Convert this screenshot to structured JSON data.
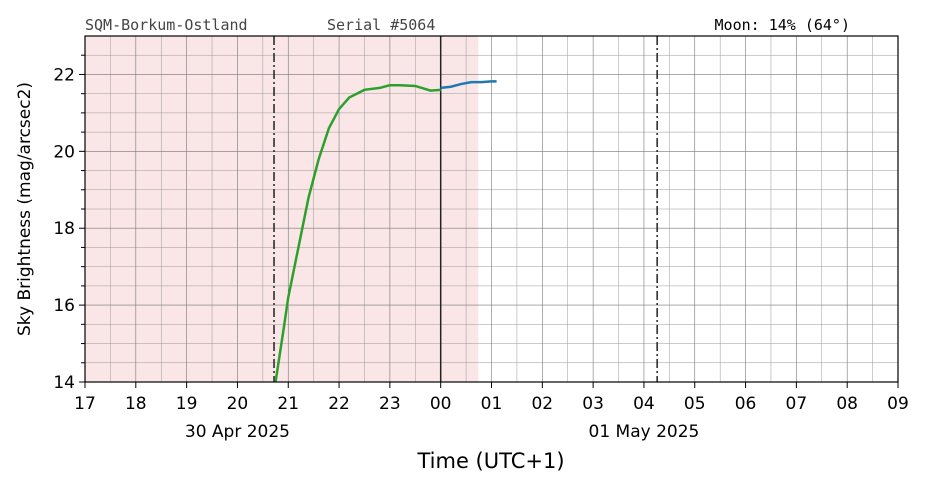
{
  "chart_data": {
    "type": "line",
    "header_left": "SQM-Borkum-Ostland",
    "header_middle": "Serial #5064",
    "header_right": "Moon: 14% (64°)",
    "ylabel": "Sky Brightness (mag/arcsec2)",
    "xlabel": "Time (UTC+1)",
    "xlim": [
      17,
      33
    ],
    "ylim": [
      14,
      23
    ],
    "xticks": [
      17,
      18,
      19,
      20,
      21,
      22,
      23,
      {
        "value": 24,
        "label": "00"
      },
      {
        "value": 25,
        "label": "01"
      },
      {
        "value": 26,
        "label": "02"
      },
      {
        "value": 27,
        "label": "03"
      },
      {
        "value": 28,
        "label": "04"
      },
      {
        "value": 29,
        "label": "05"
      },
      {
        "value": 30,
        "label": "06"
      },
      {
        "value": 31,
        "label": "07"
      },
      {
        "value": 32,
        "label": "08"
      },
      {
        "value": 33,
        "label": "09"
      }
    ],
    "yticks": [
      14,
      16,
      18,
      20,
      22
    ],
    "xminorticks": [
      17.5,
      18.5,
      19.5,
      20.5,
      21.5,
      22.5,
      23.5,
      24.5,
      25.5,
      26.5,
      27.5,
      28.5,
      29.5,
      30.5,
      31.5,
      32.5
    ],
    "yminorticks": [
      14.5,
      15,
      15.5,
      16.5,
      17,
      17.5,
      18.5,
      19,
      19.5,
      20.5,
      21,
      21.5,
      22.5
    ],
    "date_labels": [
      {
        "value": 20,
        "label": "30 Apr 2025"
      },
      {
        "value": 28,
        "label": "01 May 2025"
      }
    ],
    "shaded_span": [
      17,
      24.74
    ],
    "shaded_color": "#fae6e6",
    "dashdot_lines": [
      20.72,
      28.26
    ],
    "solid_lines": [
      24
    ],
    "grid": true,
    "series": [
      {
        "color": "#2ca02c",
        "x": [
          20.75,
          20.9,
          21.0,
          21.2,
          21.4,
          21.6,
          21.8,
          22.0,
          22.2,
          22.5,
          22.8,
          23.0,
          23.2,
          23.5,
          23.8,
          24.0
        ],
        "values": [
          14,
          15.3,
          16.2,
          17.5,
          18.8,
          19.8,
          20.6,
          21.1,
          21.4,
          21.6,
          21.65,
          21.72,
          21.72,
          21.7,
          21.58,
          21.6
        ]
      },
      {
        "color": "#1f77b4",
        "x": [
          24.0,
          24.2,
          24.4,
          24.6,
          24.8,
          25.0,
          25.1
        ],
        "values": [
          21.65,
          21.68,
          21.75,
          21.8,
          21.8,
          21.82,
          21.82
        ]
      }
    ]
  }
}
